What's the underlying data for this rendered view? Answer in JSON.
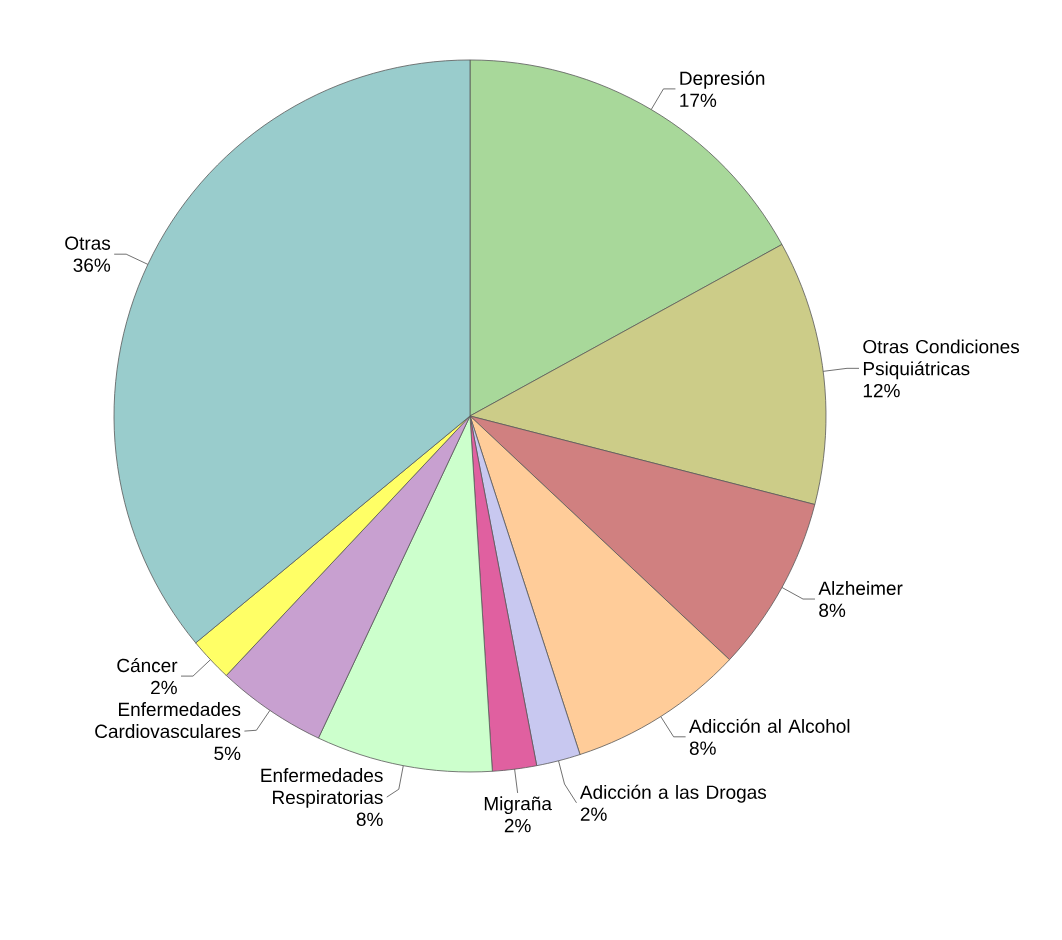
{
  "chart_data": {
    "type": "pie",
    "categories": [
      "Depresión",
      "Otras Condiciones Psiquiátricas",
      "Alzheimer",
      "Adicción al Alcohol",
      "Adicción a las Drogas",
      "Migraña",
      "Enfermedades Respiratorias",
      "Enfermedades Cardiovasculares",
      "Cáncer",
      "Otras"
    ],
    "values": [
      17,
      12,
      8,
      8,
      2,
      2,
      8,
      5,
      2,
      36
    ],
    "value_labels": [
      "17%",
      "12%",
      "8%",
      "8%",
      "2%",
      "2%",
      "8%",
      "5%",
      "2%",
      "36%"
    ],
    "colors": [
      "#a8d89a",
      "#cccc88",
      "#d08080",
      "#ffcc99",
      "#c8c8f0",
      "#e060a0",
      "#ccffcc",
      "#c8a0d0",
      "#ffff66",
      "#99cccc"
    ]
  }
}
